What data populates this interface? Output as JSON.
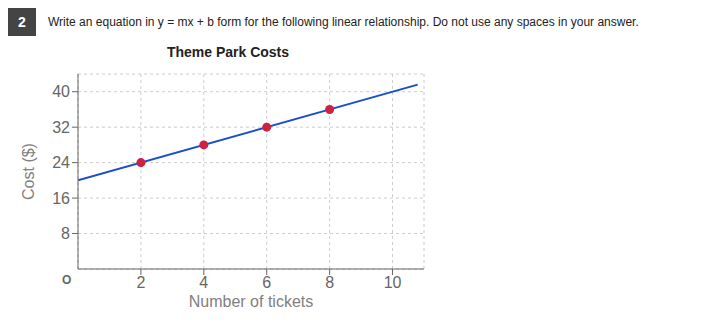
{
  "chart_data": {
    "type": "scatter",
    "title": "Theme Park Costs",
    "xlabel": "Number of tickets",
    "ylabel": "Cost ($)",
    "annotations": [
      "2",
      "Write an equation in y = mx + b form for the following linear relationship.  Do not use any spaces in your answer.",
      "O"
    ],
    "series": [
      {
        "type": "line",
        "color": "#1a4fcc",
        "x": [
          0,
          10.8
        ],
        "values": [
          20,
          41.6
        ]
      },
      {
        "type": "scatter",
        "color": "#cc2244",
        "x": [
          2,
          4,
          6,
          8
        ],
        "values": [
          24,
          28,
          32,
          36
        ]
      }
    ],
    "xlim": [
      0,
      11
    ],
    "ylim": [
      0,
      44
    ],
    "xticks": [
      2,
      4,
      6,
      8,
      10
    ],
    "yticks": [
      8,
      16,
      24,
      32,
      40
    ],
    "grid": true
  }
}
